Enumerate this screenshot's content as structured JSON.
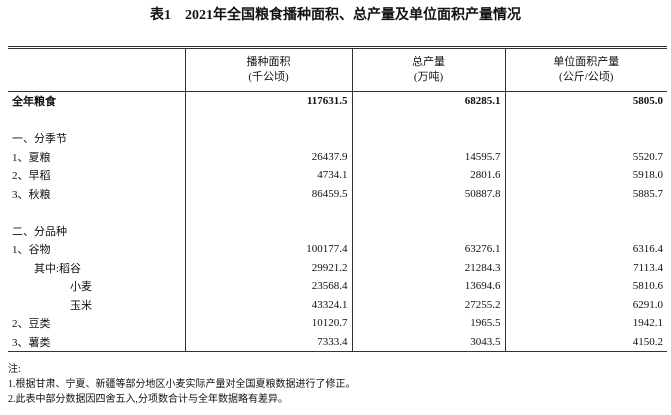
{
  "title": "表1　2021年全国粮食播种面积、总产量及单位面积产量情况",
  "table": {
    "header": [
      [
        "播种面积",
        "(千公顷)"
      ],
      [
        "总产量",
        "(万吨)"
      ],
      [
        "单位面积产量",
        "(公斤/公顷)"
      ]
    ],
    "rows": [
      [
        "全年粮食",
        "117631.5",
        "68285.1",
        "5805.0"
      ],
      [
        "一、分季节"
      ],
      [
        "1、夏粮",
        "26437.9",
        "14595.7",
        "5520.7"
      ],
      [
        "2、早稻",
        "4734.1",
        "2801.6",
        "5918.0"
      ],
      [
        "3、秋粮",
        "86459.5",
        "50887.8",
        "5885.7"
      ],
      [
        "二、分品种"
      ],
      [
        "1、谷物",
        "100177.4",
        "63276.1",
        "6316.4"
      ],
      [
        "其中:稻谷",
        "29921.2",
        "21284.3",
        "7113.4"
      ],
      [
        "小麦",
        "23568.4",
        "13694.6",
        "5810.6"
      ],
      [
        "玉米",
        "43324.1",
        "27255.2",
        "6291.0"
      ],
      [
        "2、豆类",
        "10120.7",
        "1965.5",
        "1942.1"
      ],
      [
        "3、薯类",
        "7333.4",
        "3043.5",
        "4150.2"
      ]
    ]
  },
  "notes": [
    "注:",
    "1.根据甘肃、宁夏、新疆等部分地区小麦实际产量对全国夏粮数据进行了修正。",
    "2.此表中部分数据因四舍五入,分项数合计与全年数据略有差异。"
  ]
}
